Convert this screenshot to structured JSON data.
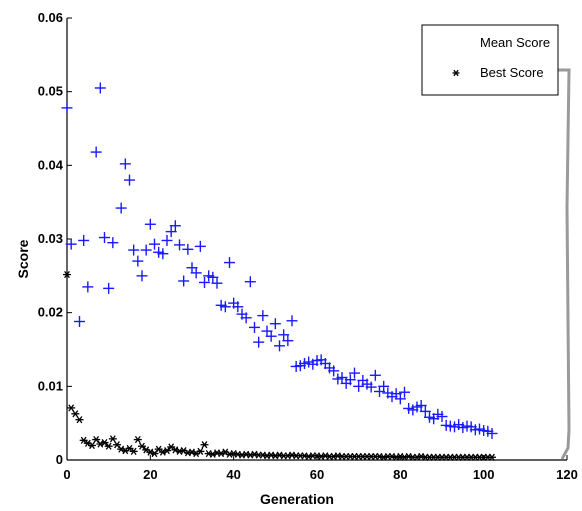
{
  "chart_data": {
    "type": "scatter",
    "title": "",
    "xlabel": "Generation",
    "ylabel": "Score",
    "xlim": [
      0,
      120
    ],
    "ylim": [
      0,
      0.06
    ],
    "x_ticks": [
      "0",
      "20",
      "40",
      "60",
      "80",
      "100",
      "120"
    ],
    "y_ticks": [
      "0",
      "0.01",
      "0.02",
      "0.03",
      "0.04",
      "0.05",
      "0.06"
    ],
    "grid": false,
    "legend_position": "top-right",
    "series": [
      {
        "name": "Mean Score",
        "marker": "plus",
        "color": "#1a1aff",
        "points": [
          [
            0,
            0.0478
          ],
          [
            1,
            0.0293
          ],
          [
            3,
            0.0188
          ],
          [
            4,
            0.0298
          ],
          [
            5,
            0.0235
          ],
          [
            7,
            0.0418
          ],
          [
            8,
            0.0505
          ],
          [
            9,
            0.0302
          ],
          [
            10,
            0.0233
          ],
          [
            11,
            0.0295
          ],
          [
            13,
            0.0342
          ],
          [
            14,
            0.0402
          ],
          [
            15,
            0.038
          ],
          [
            16,
            0.0285
          ],
          [
            17,
            0.027
          ],
          [
            18,
            0.025
          ],
          [
            19,
            0.0285
          ],
          [
            20,
            0.032
          ],
          [
            21,
            0.0293
          ],
          [
            22,
            0.0282
          ],
          [
            23,
            0.028
          ],
          [
            24,
            0.0298
          ],
          [
            25,
            0.031
          ],
          [
            26,
            0.0318
          ],
          [
            27,
            0.0292
          ],
          [
            28,
            0.0243
          ],
          [
            29,
            0.0286
          ],
          [
            30,
            0.0261
          ],
          [
            31,
            0.0254
          ],
          [
            32,
            0.029
          ],
          [
            33,
            0.0241
          ],
          [
            34,
            0.025
          ],
          [
            35,
            0.0248
          ],
          [
            36,
            0.024
          ],
          [
            37,
            0.021
          ],
          [
            38,
            0.0208
          ],
          [
            39,
            0.0268
          ],
          [
            40,
            0.0213
          ],
          [
            41,
            0.0208
          ],
          [
            42,
            0.0198
          ],
          [
            43,
            0.0193
          ],
          [
            44,
            0.0242
          ],
          [
            45,
            0.018
          ],
          [
            46,
            0.016
          ],
          [
            47,
            0.0196
          ],
          [
            48,
            0.0175
          ],
          [
            49,
            0.0168
          ],
          [
            50,
            0.0185
          ],
          [
            51,
            0.0155
          ],
          [
            52,
            0.017
          ],
          [
            53,
            0.0162
          ],
          [
            54,
            0.0189
          ],
          [
            55,
            0.0127
          ],
          [
            56,
            0.0128
          ],
          [
            57,
            0.0131
          ],
          [
            58,
            0.0133
          ],
          [
            59,
            0.013
          ],
          [
            60,
            0.0135
          ],
          [
            61,
            0.0136
          ],
          [
            62,
            0.0131
          ],
          [
            63,
            0.0125
          ],
          [
            64,
            0.0121
          ],
          [
            65,
            0.011
          ],
          [
            66,
            0.0112
          ],
          [
            67,
            0.0104
          ],
          [
            68,
            0.0109
          ],
          [
            69,
            0.0118
          ],
          [
            70,
            0.01
          ],
          [
            71,
            0.0108
          ],
          [
            72,
            0.0103
          ],
          [
            73,
            0.0099
          ],
          [
            74,
            0.0115
          ],
          [
            75,
            0.0093
          ],
          [
            76,
            0.01
          ],
          [
            77,
            0.0091
          ],
          [
            78,
            0.0086
          ],
          [
            79,
            0.009
          ],
          [
            80,
            0.0083
          ],
          [
            81,
            0.0092
          ],
          [
            82,
            0.007
          ],
          [
            83,
            0.0068
          ],
          [
            84,
            0.0072
          ],
          [
            85,
            0.0074
          ],
          [
            86,
            0.0066
          ],
          [
            87,
            0.0058
          ],
          [
            88,
            0.0056
          ],
          [
            89,
            0.0062
          ],
          [
            90,
            0.0059
          ],
          [
            91,
            0.0047
          ],
          [
            92,
            0.0046
          ],
          [
            93,
            0.0045
          ],
          [
            94,
            0.0048
          ],
          [
            95,
            0.0044
          ],
          [
            96,
            0.0046
          ],
          [
            97,
            0.0045
          ],
          [
            98,
            0.0041
          ],
          [
            99,
            0.0042
          ],
          [
            100,
            0.004
          ],
          [
            101,
            0.0039
          ],
          [
            102,
            0.0036
          ]
        ]
      },
      {
        "name": "Best Score",
        "marker": "star",
        "color": "#000000",
        "points": [
          [
            0,
            0.0249
          ],
          [
            1,
            0.0068
          ],
          [
            2,
            0.006
          ],
          [
            3,
            0.0052
          ],
          [
            4,
            0.0024
          ],
          [
            5,
            0.002
          ],
          [
            6,
            0.0017
          ],
          [
            7,
            0.0025
          ],
          [
            8,
            0.0019
          ],
          [
            9,
            0.0021
          ],
          [
            10,
            0.0016
          ],
          [
            11,
            0.0026
          ],
          [
            12,
            0.0018
          ],
          [
            13,
            0.0012
          ],
          [
            14,
            0.001
          ],
          [
            15,
            0.0013
          ],
          [
            16,
            0.0009
          ],
          [
            17,
            0.0025
          ],
          [
            18,
            0.0016
          ],
          [
            19,
            0.0011
          ],
          [
            20,
            0.0008
          ],
          [
            21,
            0.0006
          ],
          [
            22,
            0.0012
          ],
          [
            23,
            0.0008
          ],
          [
            24,
            0.001
          ],
          [
            25,
            0.0015
          ],
          [
            26,
            0.0011
          ],
          [
            27,
            0.0009
          ],
          [
            28,
            0.001
          ],
          [
            29,
            0.0007
          ],
          [
            30,
            0.0008
          ],
          [
            31,
            0.0006
          ],
          [
            32,
            0.0009
          ],
          [
            33,
            0.0018
          ],
          [
            34,
            0.0006
          ],
          [
            35,
            0.0005
          ],
          [
            36,
            0.0007
          ],
          [
            37,
            0.0006
          ],
          [
            38,
            0.0008
          ],
          [
            39,
            0.0005
          ],
          [
            40,
            0.0006
          ],
          [
            41,
            0.0005
          ],
          [
            42,
            0.0004
          ],
          [
            43,
            0.0005
          ],
          [
            44,
            0.0004
          ],
          [
            45,
            0.0005
          ],
          [
            46,
            0.0004
          ],
          [
            47,
            0.0004
          ],
          [
            48,
            0.0003
          ],
          [
            49,
            0.0004
          ],
          [
            50,
            0.0003
          ],
          [
            51,
            0.0004
          ],
          [
            52,
            0.0003
          ],
          [
            53,
            0.0003
          ],
          [
            54,
            0.0004
          ],
          [
            55,
            0.0003
          ],
          [
            56,
            0.0003
          ],
          [
            57,
            0.0003
          ],
          [
            58,
            0.0002
          ],
          [
            59,
            0.0003
          ],
          [
            60,
            0.0003
          ],
          [
            61,
            0.0002
          ],
          [
            62,
            0.0003
          ],
          [
            63,
            0.0002
          ],
          [
            64,
            0.0002
          ],
          [
            65,
            0.0003
          ],
          [
            66,
            0.0002
          ],
          [
            67,
            0.0002
          ],
          [
            68,
            0.0002
          ],
          [
            69,
            0.0002
          ],
          [
            70,
            0.0002
          ],
          [
            71,
            0.0002
          ],
          [
            72,
            0.0002
          ],
          [
            73,
            0.0002
          ],
          [
            74,
            0.0002
          ],
          [
            75,
            0.0002
          ],
          [
            76,
            0.0001
          ],
          [
            77,
            0.0002
          ],
          [
            78,
            0.0002
          ],
          [
            79,
            0.0001
          ],
          [
            80,
            0.0002
          ],
          [
            81,
            0.0001
          ],
          [
            82,
            0.0002
          ],
          [
            83,
            0.0001
          ],
          [
            84,
            0.0001
          ],
          [
            85,
            0.0002
          ],
          [
            86,
            0.0001
          ],
          [
            87,
            0.0001
          ],
          [
            88,
            0.0001
          ],
          [
            89,
            0.0001
          ],
          [
            90,
            0.0001
          ],
          [
            91,
            0.0001
          ],
          [
            92,
            0.0001
          ],
          [
            93,
            0.0001
          ],
          [
            94,
            0.0001
          ],
          [
            95,
            0.0001
          ],
          [
            96,
            0.0001
          ],
          [
            97,
            0.0001
          ],
          [
            98,
            0.0001
          ],
          [
            99,
            0.0001
          ],
          [
            100,
            0.0001
          ],
          [
            101,
            0.0001
          ],
          [
            102,
            0.0001
          ]
        ]
      }
    ]
  }
}
